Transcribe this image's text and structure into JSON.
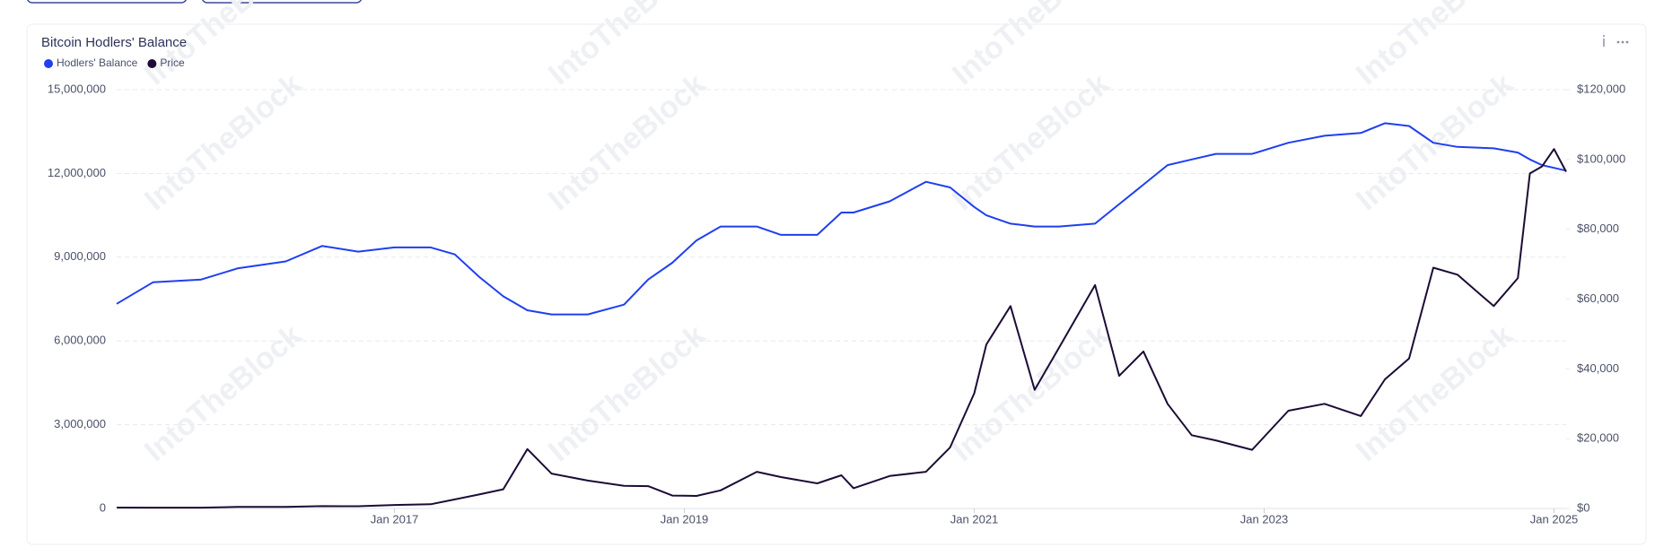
{
  "chart_data": {
    "type": "line",
    "title": "Bitcoin Hodlers' Balance",
    "watermark": "IntoTheBlock",
    "x": [
      "2015-02",
      "2015-05",
      "2015-09",
      "2015-12",
      "2016-04",
      "2016-07",
      "2016-10",
      "2017-01",
      "2017-04",
      "2017-06",
      "2017-08",
      "2017-10",
      "2017-12",
      "2018-02",
      "2018-05",
      "2018-08",
      "2018-10",
      "2018-12",
      "2019-02",
      "2019-04",
      "2019-07",
      "2019-09",
      "2019-12",
      "2020-02",
      "2020-03",
      "2020-06",
      "2020-09",
      "2020-11",
      "2021-01",
      "2021-02",
      "2021-04",
      "2021-06",
      "2021-08",
      "2021-11",
      "2022-01",
      "2022-03",
      "2022-05",
      "2022-07",
      "2022-09",
      "2022-12",
      "2023-03",
      "2023-06",
      "2023-09",
      "2023-11",
      "2024-01",
      "2024-03",
      "2024-05",
      "2024-08",
      "2024-10",
      "2024-11",
      "2024-12",
      "2025-01",
      "2025-02"
    ],
    "series": [
      {
        "name": "Hodlers' Balance",
        "color": "#1f3ff0",
        "axis": "y",
        "values": [
          7330000,
          8100000,
          8200000,
          8600000,
          8850000,
          9400000,
          9200000,
          9350000,
          9350000,
          9100000,
          8300000,
          7600000,
          7100000,
          6950000,
          6950000,
          7300000,
          8200000,
          8800000,
          9600000,
          10100000,
          10100000,
          9800000,
          9800000,
          10600000,
          10600000,
          11000000,
          11700000,
          11500000,
          10800000,
          10500000,
          10200000,
          10100000,
          10100000,
          10200000,
          10900000,
          11600000,
          12300000,
          12500000,
          12700000,
          12700000,
          13100000,
          13350000,
          13450000,
          13800000,
          13700000,
          13100000,
          12950000,
          12900000,
          12750000,
          12500000,
          12300000,
          12200000,
          12100000
        ]
      },
      {
        "name": "Price",
        "color": "#1c0b36",
        "axis": "y2",
        "values": [
          250,
          240,
          230,
          430,
          430,
          660,
          640,
          1000,
          1200,
          2600,
          4000,
          5500,
          17000,
          10000,
          8000,
          6500,
          6400,
          3700,
          3600,
          5200,
          10500,
          9000,
          7200,
          9500,
          5800,
          9300,
          10500,
          17500,
          33000,
          47000,
          58000,
          34000,
          46000,
          64000,
          38000,
          45000,
          30000,
          21000,
          19500,
          16800,
          28000,
          30000,
          26500,
          37000,
          43000,
          69000,
          67000,
          58000,
          66000,
          96000,
          98000,
          103000,
          96500
        ]
      }
    ],
    "xlim": [
      "2015-02",
      "2025-02"
    ],
    "xticks": [
      {
        "value": "2017-01",
        "label": "Jan 2017"
      },
      {
        "value": "2019-01",
        "label": "Jan 2019"
      },
      {
        "value": "2021-01",
        "label": "Jan 2021"
      },
      {
        "value": "2023-01",
        "label": "Jan 2023"
      },
      {
        "value": "2025-01",
        "label": "Jan 2025"
      }
    ],
    "ylim": [
      0,
      15000000
    ],
    "yticks": [
      0,
      {
        "value": 3000000,
        "label": "3,000,000"
      },
      {
        "value": 6000000,
        "label": "6,000,000"
      },
      {
        "value": 9000000,
        "label": "9,000,000"
      },
      {
        "value": 12000000,
        "label": "12,000,000"
      },
      {
        "value": 15000000,
        "label": "15,000,000"
      }
    ],
    "y2lim": [
      0,
      120000
    ],
    "y2ticks": [
      {
        "value": 0,
        "label": "$0"
      },
      {
        "value": 20000,
        "label": "$20,000"
      },
      {
        "value": 40000,
        "label": "$40,000"
      },
      {
        "value": 60000,
        "label": "$60,000"
      },
      {
        "value": 80000,
        "label": "$80,000"
      },
      {
        "value": 100000,
        "label": "$100,000"
      },
      {
        "value": 120000,
        "label": "$120,000"
      }
    ],
    "grid": true
  }
}
